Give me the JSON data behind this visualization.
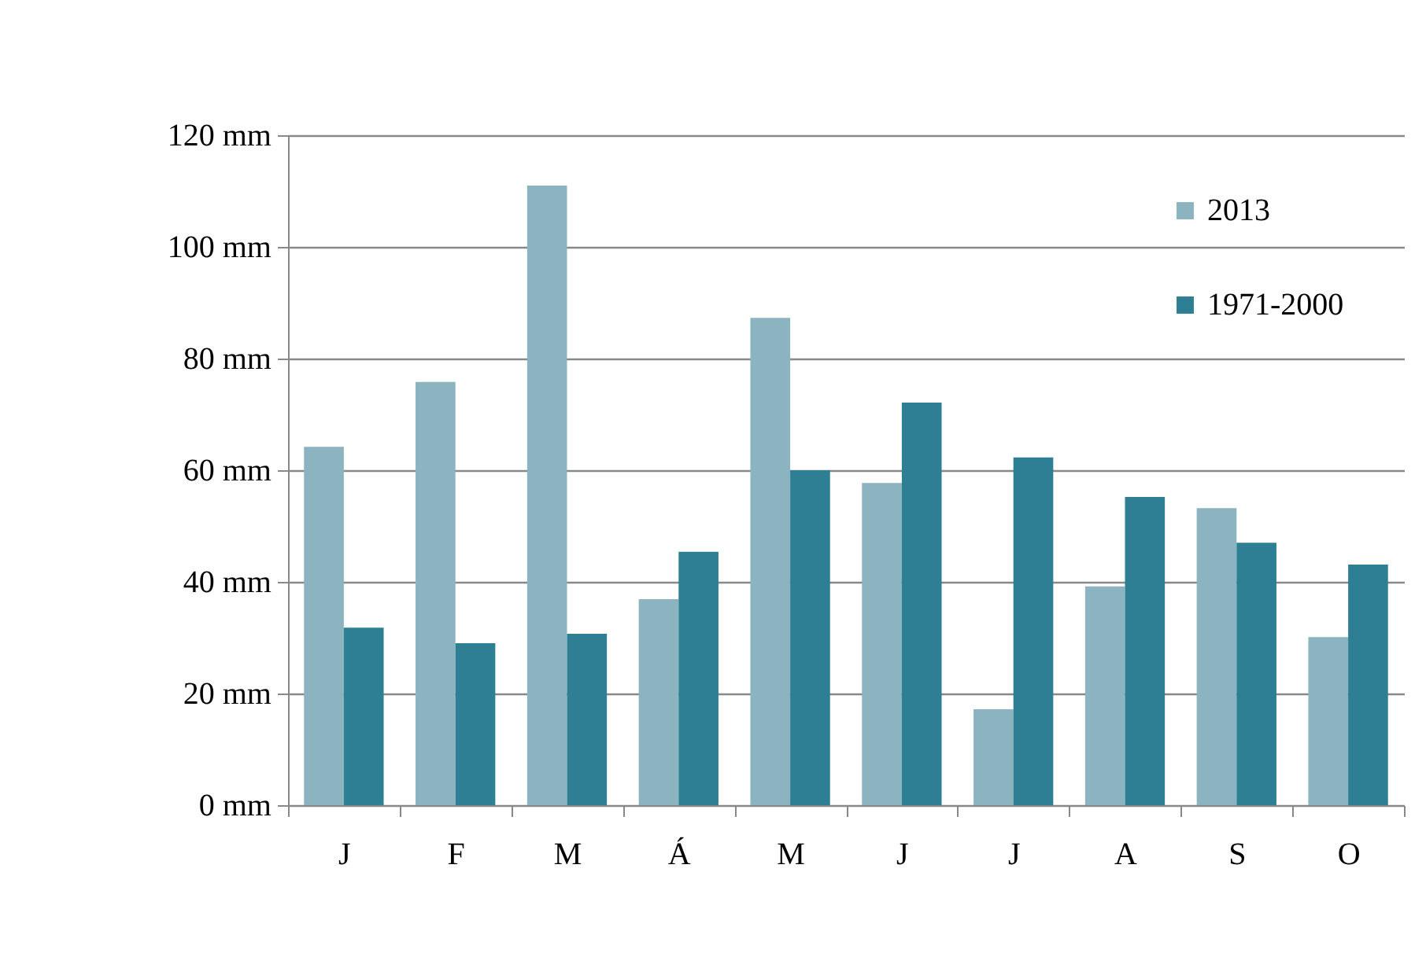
{
  "chart_data": {
    "type": "bar",
    "categories": [
      "J",
      "F",
      "M",
      "Á",
      "M",
      "J",
      "J",
      "A",
      "S",
      "O"
    ],
    "series": [
      {
        "name": "2013",
        "color": "#8cb3c0",
        "values": [
          64.2,
          75.8,
          111,
          36.9,
          87.3,
          57.7,
          17.2,
          39.2,
          53.2,
          30.1
        ]
      },
      {
        "name": "1971-2000",
        "color": "#2e7f93",
        "values": [
          31.8,
          29.0,
          30.7,
          45.4,
          60.0,
          72.1,
          62.3,
          55.2,
          47.0,
          43.1
        ]
      }
    ],
    "ylim": [
      0,
      120
    ],
    "yticks": [
      {
        "value": 0,
        "label": "0 mm"
      },
      {
        "value": 20,
        "label": "20 mm"
      },
      {
        "value": 40,
        "label": "40 mm"
      },
      {
        "value": 60,
        "label": "60 mm"
      },
      {
        "value": 80,
        "label": "80 mm"
      },
      {
        "value": 100,
        "label": "100 mm"
      },
      {
        "value": 120,
        "label": "120 mm"
      }
    ],
    "grid": "y",
    "legend": "top right"
  }
}
